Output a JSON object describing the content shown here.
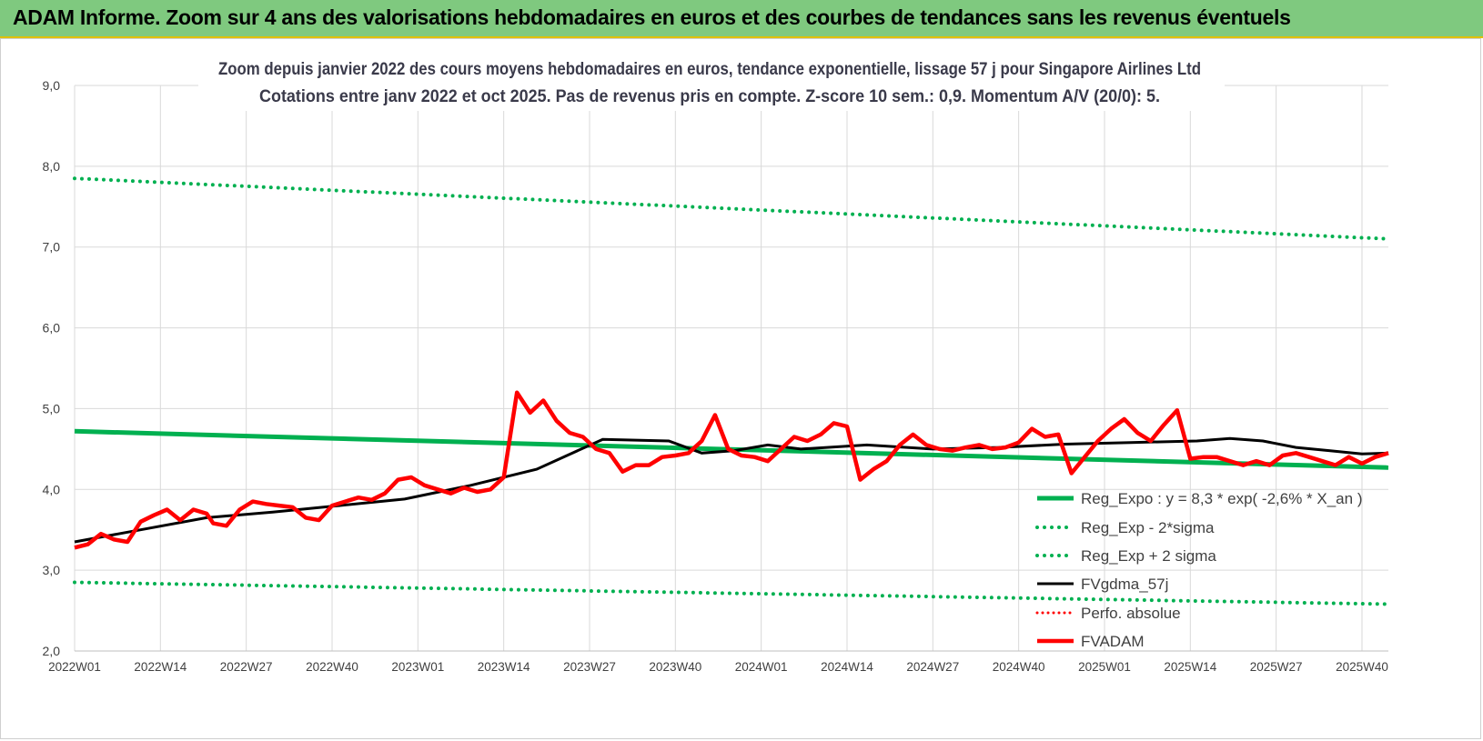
{
  "banner": {
    "title": "ADAM Informe. Zoom sur 4 ans des valorisations hebdomadaires en euros et des courbes de tendances sans les revenus éventuels"
  },
  "chart_data": {
    "type": "line",
    "title": "Zoom depuis janvier 2022 des cours moyens hebdomadaires en euros, tendance exponentielle, lissage 57 j pour Singapore Airlines Ltd",
    "subtitle": "Cotations entre janv 2022 et oct 2025. Pas de revenus pris en compte. Z-score 10 sem.: 0,9. Momentum A/V (20/0): 5.",
    "xlabel": "",
    "ylabel": "",
    "ylim": [
      2.0,
      9.0
    ],
    "y_ticks": [
      "2,0",
      "3,0",
      "4,0",
      "5,0",
      "6,0",
      "7,0",
      "8,0",
      "9,0"
    ],
    "x_ticks": [
      "2022W01",
      "2022W14",
      "2022W27",
      "2022W40",
      "2023W01",
      "2023W14",
      "2023W27",
      "2023W40",
      "2024W01",
      "2024W14",
      "2024W27",
      "2024W40",
      "2025W01",
      "2025W14",
      "2025W27",
      "2025W40"
    ],
    "x_week_range": [
      0,
      199
    ],
    "grid": "vertical and horizontal",
    "legend_position": "bottom-right",
    "colors": {
      "green": "#00b050",
      "black": "#000000",
      "red": "#ff0000"
    },
    "series": [
      {
        "name": "Reg_Expo : y = 8,3 * exp( -2,6% * X_an )",
        "style": "solid-green-thick",
        "x": [
          0,
          199
        ],
        "y": [
          4.72,
          4.27
        ]
      },
      {
        "name": "Reg_Exp - 2*sigma",
        "style": "dotted-green",
        "x": [
          0,
          199
        ],
        "y": [
          2.85,
          2.58
        ]
      },
      {
        "name": "Reg_Exp + 2 sigma",
        "style": "dotted-green",
        "x": [
          0,
          199
        ],
        "y": [
          7.85,
          7.1
        ]
      },
      {
        "name": "FVgdma_57j",
        "style": "solid-black",
        "x": [
          0,
          10,
          20,
          30,
          40,
          50,
          60,
          70,
          80,
          90,
          95,
          100,
          105,
          110,
          120,
          130,
          140,
          150,
          160,
          170,
          175,
          180,
          185,
          190,
          195,
          199
        ],
        "y": [
          3.35,
          3.5,
          3.65,
          3.72,
          3.8,
          3.88,
          4.05,
          4.25,
          4.62,
          4.6,
          4.45,
          4.48,
          4.55,
          4.5,
          4.55,
          4.5,
          4.52,
          4.56,
          4.58,
          4.6,
          4.63,
          4.6,
          4.52,
          4.48,
          4.44,
          4.45
        ]
      },
      {
        "name": "Perfo. absolue",
        "style": "dotted-red",
        "x": [],
        "y": []
      },
      {
        "name": "FVADAM",
        "style": "solid-red-thick",
        "x": [
          0,
          2,
          4,
          6,
          8,
          10,
          12,
          14,
          16,
          18,
          20,
          21,
          23,
          25,
          27,
          29,
          31,
          33,
          35,
          37,
          39,
          41,
          43,
          45,
          47,
          49,
          51,
          53,
          55,
          57,
          59,
          61,
          63,
          65,
          67,
          69,
          71,
          73,
          75,
          77,
          79,
          81,
          83,
          85,
          87,
          89,
          91,
          93,
          95,
          97,
          99,
          101,
          103,
          105,
          107,
          109,
          111,
          113,
          115,
          117,
          119,
          121,
          123,
          125,
          127,
          129,
          131,
          133,
          135,
          137,
          139,
          141,
          143,
          145,
          147,
          149,
          151,
          153,
          155,
          157,
          159,
          161,
          163,
          165,
          167,
          169,
          171,
          173,
          175,
          177,
          179,
          181,
          183,
          185,
          187,
          189,
          191,
          193,
          195,
          197,
          199
        ],
        "y": [
          3.28,
          3.32,
          3.45,
          3.38,
          3.35,
          3.6,
          3.68,
          3.75,
          3.62,
          3.75,
          3.7,
          3.58,
          3.55,
          3.75,
          3.85,
          3.82,
          3.8,
          3.78,
          3.65,
          3.62,
          3.8,
          3.85,
          3.9,
          3.87,
          3.95,
          4.12,
          4.15,
          4.05,
          4.0,
          3.95,
          4.02,
          3.97,
          4.0,
          4.15,
          5.2,
          4.95,
          5.1,
          4.85,
          4.7,
          4.65,
          4.5,
          4.45,
          4.22,
          4.3,
          4.3,
          4.4,
          4.42,
          4.45,
          4.6,
          4.92,
          4.5,
          4.42,
          4.4,
          4.35,
          4.5,
          4.65,
          4.6,
          4.68,
          4.82,
          4.78,
          4.12,
          4.25,
          4.35,
          4.55,
          4.68,
          4.55,
          4.5,
          4.48,
          4.52,
          4.55,
          4.5,
          4.52,
          4.58,
          4.75,
          4.65,
          4.68,
          4.2,
          4.4,
          4.6,
          4.75,
          4.87,
          4.7,
          4.6,
          4.8,
          4.98,
          4.38,
          4.4,
          4.4,
          4.35,
          4.3,
          4.35,
          4.3,
          4.42,
          4.45,
          4.4,
          4.35,
          4.3,
          4.4,
          4.32,
          4.4,
          4.45
        ]
      }
    ]
  }
}
